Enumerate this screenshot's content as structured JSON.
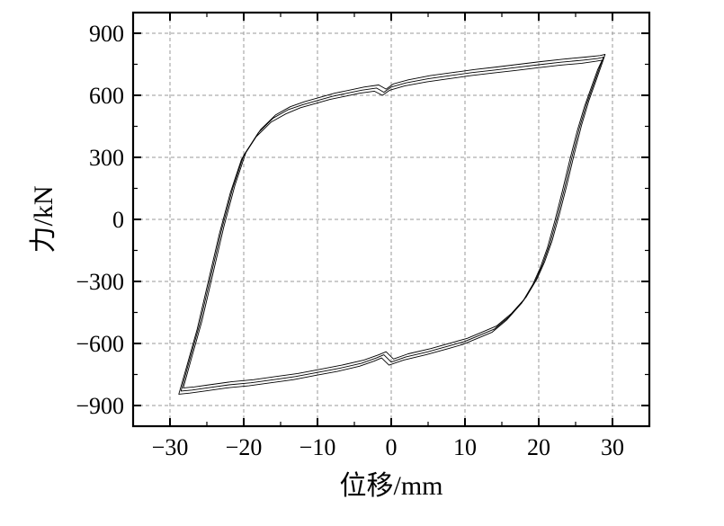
{
  "chart_data": {
    "type": "line",
    "title": "",
    "xlabel": "位移/mm",
    "ylabel": "力/kN",
    "xlim": [
      -35,
      35
    ],
    "ylim": [
      -1000,
      1000
    ],
    "xticks": [
      -30,
      -20,
      -10,
      0,
      10,
      20,
      30
    ],
    "yticks": [
      -900,
      -600,
      -300,
      0,
      300,
      600,
      900
    ],
    "xtick_labels": [
      "−30",
      "−20",
      "−10",
      "0",
      "10",
      "20",
      "30"
    ],
    "ytick_labels": [
      "−900",
      "−600",
      "−300",
      "0",
      "300",
      "600",
      "900"
    ],
    "grid": true,
    "legend": "none",
    "line_color": "#000000",
    "series": [
      {
        "x": [
          -28.5,
          -27.5,
          -26.0,
          -24.5,
          -23.0,
          -21.5,
          -20.0,
          -18.0,
          -16.0,
          -14.0,
          -12.0,
          -10.0,
          -8.0,
          -6.0,
          -4.0,
          -2.0,
          -1.0,
          0.0,
          2.0,
          5.0,
          8.0,
          11.0,
          14.0,
          17.0,
          20.0,
          23.0,
          26.0,
          28.0,
          28.8,
          28.3,
          27.5,
          26.5,
          25.5,
          24.5,
          23.5,
          22.5,
          21.5,
          20.5,
          19.5,
          18.0,
          16.0,
          14.0,
          12.0,
          10.0,
          8.0,
          5.0,
          2.0,
          0.0,
          -1.0,
          -2.0,
          -4.0,
          -7.0,
          -10.0,
          -13.0,
          -16.0,
          -19.0,
          -22.0,
          -25.0,
          -27.0,
          -28.5
        ],
        "y": [
          -830,
          -700,
          -510,
          -280,
          -50,
          150,
          310,
          420,
          490,
          530,
          555,
          575,
          595,
          610,
          625,
          635,
          615,
          640,
          660,
          680,
          695,
          710,
          722,
          735,
          748,
          760,
          770,
          778,
          785,
          740,
          660,
          560,
          440,
          300,
          150,
          10,
          -120,
          -220,
          -300,
          -390,
          -470,
          -530,
          -560,
          -590,
          -610,
          -640,
          -665,
          -690,
          -655,
          -670,
          -695,
          -720,
          -740,
          -760,
          -775,
          -790,
          -800,
          -815,
          -825,
          -830
        ]
      },
      {
        "x": [
          -28.8,
          -27.8,
          -26.3,
          -24.8,
          -23.3,
          -21.8,
          -20.3,
          -18.3,
          -16.3,
          -14.3,
          -12.3,
          -10.3,
          -8.3,
          -6.3,
          -4.3,
          -2.3,
          -1.2,
          -0.2,
          1.8,
          4.8,
          7.8,
          10.8,
          13.8,
          16.8,
          19.8,
          22.8,
          25.8,
          27.8,
          28.6,
          28.0,
          27.2,
          26.2,
          25.2,
          24.2,
          23.2,
          22.2,
          21.2,
          20.2,
          19.2,
          17.7,
          15.7,
          13.7,
          11.7,
          9.7,
          7.7,
          4.7,
          1.7,
          -0.3,
          -1.3,
          -2.3,
          -4.3,
          -7.3,
          -10.3,
          -13.3,
          -16.3,
          -19.3,
          -22.3,
          -25.3,
          -27.3,
          -28.8
        ],
        "y": [
          -845,
          -720,
          -530,
          -300,
          -70,
          130,
          290,
          400,
          470,
          510,
          540,
          560,
          580,
          595,
          610,
          620,
          600,
          625,
          645,
          665,
          680,
          695,
          708,
          720,
          733,
          745,
          755,
          765,
          770,
          725,
          645,
          545,
          425,
          285,
          135,
          -5,
          -135,
          -235,
          -315,
          -405,
          -485,
          -545,
          -575,
          -605,
          -625,
          -655,
          -680,
          -705,
          -670,
          -685,
          -710,
          -735,
          -755,
          -775,
          -790,
          -805,
          -815,
          -830,
          -840,
          -845
        ]
      },
      {
        "x": [
          -28.2,
          -27.2,
          -25.7,
          -24.2,
          -22.7,
          -21.2,
          -19.7,
          -17.7,
          -15.7,
          -13.7,
          -11.7,
          -9.7,
          -7.7,
          -5.7,
          -3.7,
          -1.7,
          -0.7,
          0.3,
          2.3,
          5.3,
          8.3,
          11.3,
          14.3,
          17.3,
          20.3,
          23.3,
          26.3,
          28.3,
          29.0,
          28.6,
          27.8,
          26.8,
          25.8,
          24.8,
          23.8,
          22.8,
          21.8,
          20.8,
          19.8,
          18.3,
          16.3,
          14.3,
          12.3,
          10.3,
          8.3,
          5.3,
          2.3,
          0.3,
          -0.7,
          -1.7,
          -3.7,
          -6.7,
          -9.7,
          -12.7,
          -15.7,
          -18.7,
          -21.7,
          -24.7,
          -26.7,
          -28.2
        ],
        "y": [
          -815,
          -685,
          -495,
          -265,
          -35,
          165,
          325,
          435,
          505,
          545,
          570,
          590,
          610,
          625,
          640,
          650,
          630,
          655,
          675,
          695,
          710,
          725,
          737,
          750,
          763,
          775,
          785,
          792,
          798,
          755,
          675,
          575,
          455,
          315,
          165,
          25,
          -105,
          -205,
          -285,
          -375,
          -455,
          -515,
          -545,
          -575,
          -595,
          -625,
          -650,
          -675,
          -640,
          -655,
          -680,
          -705,
          -725,
          -745,
          -760,
          -775,
          -785,
          -800,
          -810,
          -815
        ]
      }
    ]
  }
}
